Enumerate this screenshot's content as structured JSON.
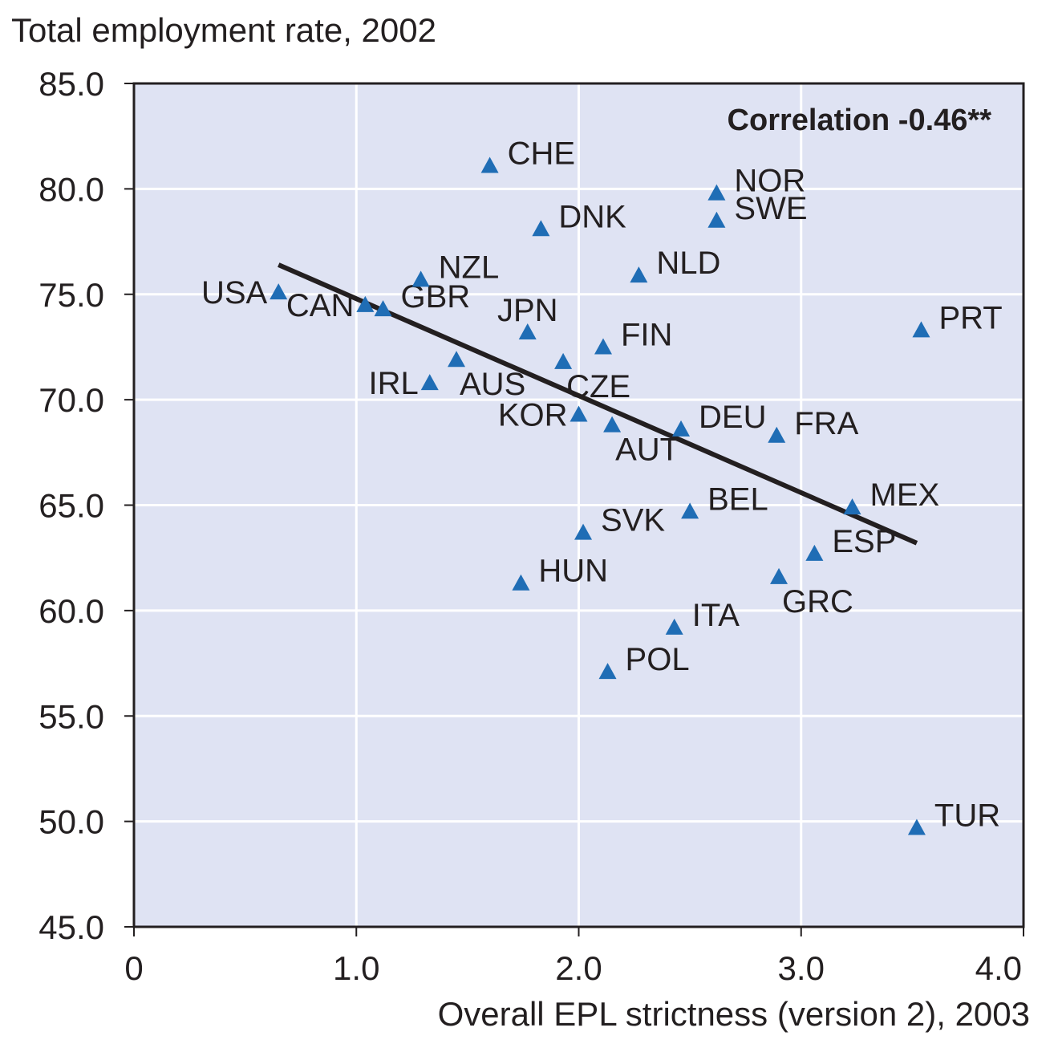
{
  "chart_data": {
    "type": "scatter",
    "title": "",
    "ylabel": "Total employment rate, 2002",
    "xlabel": "Overall EPL strictness (version 2), 2003",
    "xlim": [
      0,
      4.0
    ],
    "ylim": [
      45.0,
      85.0
    ],
    "x_ticks": [
      0,
      1.0,
      2.0,
      3.0,
      4.0
    ],
    "x_tick_labels": [
      "0",
      "1.0",
      "2.0",
      "3.0",
      "4.0"
    ],
    "y_ticks": [
      45.0,
      50.0,
      55.0,
      60.0,
      65.0,
      70.0,
      75.0,
      80.0,
      85.0
    ],
    "y_tick_labels": [
      "45.0",
      "50.0",
      "55.0",
      "60.0",
      "65.0",
      "70.0",
      "75.0",
      "80.0",
      "85.0"
    ],
    "grid": true,
    "annotation": "Correlation -0.46**",
    "trendline": {
      "x": [
        0.65,
        3.52
      ],
      "y": [
        76.4,
        63.2
      ]
    },
    "marker_color": "#1f6db5",
    "plot_background": "#dfe3f3",
    "points": [
      {
        "label": "USA",
        "x": 0.65,
        "y": 75.1,
        "anchor": "end"
      },
      {
        "label": "CAN",
        "x": 1.04,
        "y": 74.5,
        "anchor": "end"
      },
      {
        "label": "GBR",
        "x": 1.12,
        "y": 74.3,
        "anchor": "start"
      },
      {
        "label": "NZL",
        "x": 1.29,
        "y": 75.7,
        "anchor": "start"
      },
      {
        "label": "IRL",
        "x": 1.33,
        "y": 70.8,
        "anchor": "end"
      },
      {
        "label": "AUS",
        "x": 1.45,
        "y": 71.9,
        "anchor": "below"
      },
      {
        "label": "CHE",
        "x": 1.6,
        "y": 81.1,
        "anchor": "start"
      },
      {
        "label": "HUN",
        "x": 1.74,
        "y": 61.3,
        "anchor": "start"
      },
      {
        "label": "JPN",
        "x": 1.77,
        "y": 73.2,
        "anchor": "above"
      },
      {
        "label": "DNK",
        "x": 1.83,
        "y": 78.1,
        "anchor": "start"
      },
      {
        "label": "CZE",
        "x": 1.93,
        "y": 71.8,
        "anchor": "below"
      },
      {
        "label": "KOR",
        "x": 2.0,
        "y": 69.3,
        "anchor": "end"
      },
      {
        "label": "SVK",
        "x": 2.02,
        "y": 63.7,
        "anchor": "start"
      },
      {
        "label": "FIN",
        "x": 2.11,
        "y": 72.5,
        "anchor": "start"
      },
      {
        "label": "POL",
        "x": 2.13,
        "y": 57.1,
        "anchor": "start"
      },
      {
        "label": "AUT",
        "x": 2.15,
        "y": 68.8,
        "anchor": "below"
      },
      {
        "label": "NLD",
        "x": 2.27,
        "y": 75.9,
        "anchor": "start"
      },
      {
        "label": "ITA",
        "x": 2.43,
        "y": 59.2,
        "anchor": "start"
      },
      {
        "label": "DEU",
        "x": 2.46,
        "y": 68.6,
        "anchor": "start"
      },
      {
        "label": "BEL",
        "x": 2.5,
        "y": 64.7,
        "anchor": "start"
      },
      {
        "label": "NOR",
        "x": 2.62,
        "y": 79.8,
        "anchor": "start"
      },
      {
        "label": "SWE",
        "x": 2.62,
        "y": 78.5,
        "anchor": "start"
      },
      {
        "label": "FRA",
        "x": 2.89,
        "y": 68.3,
        "anchor": "start"
      },
      {
        "label": "GRC",
        "x": 2.9,
        "y": 61.6,
        "anchor": "below"
      },
      {
        "label": "ESP",
        "x": 3.06,
        "y": 62.7,
        "anchor": "start"
      },
      {
        "label": "MEX",
        "x": 3.23,
        "y": 64.9,
        "anchor": "start"
      },
      {
        "label": "TUR",
        "x": 3.52,
        "y": 49.7,
        "anchor": "start"
      },
      {
        "label": "PRT",
        "x": 3.54,
        "y": 73.3,
        "anchor": "start"
      }
    ]
  }
}
